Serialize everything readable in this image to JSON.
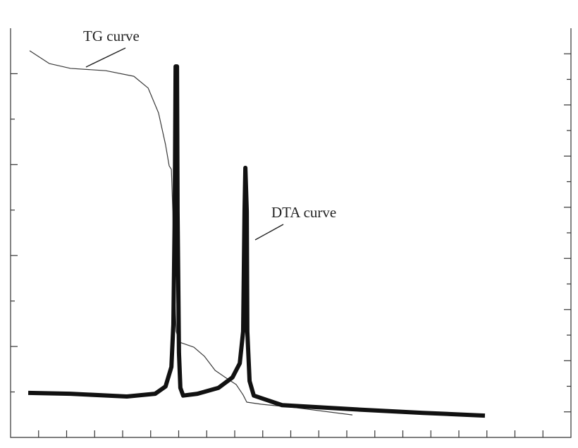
{
  "chart_data": {
    "type": "line",
    "xlim": [
      0,
      20
    ],
    "xticks": [
      1,
      2,
      3,
      4,
      5,
      6,
      7,
      8,
      9,
      10,
      11,
      12,
      13,
      14,
      15,
      16,
      17,
      18,
      19
    ],
    "ylim": [
      0,
      9
    ],
    "yticks": [
      1,
      2,
      3,
      4,
      5,
      6,
      7,
      8
    ],
    "y2lim": [
      0,
      16
    ],
    "y2ticks": [
      1,
      2,
      3,
      4,
      5,
      6,
      7,
      8,
      9,
      10,
      11,
      12,
      13,
      14,
      15
    ],
    "series": [
      {
        "name": "TG curve",
        "color": "#3a3a3a",
        "axis": "y2",
        "x": [
          0.68,
          1.38,
          2.14,
          3.4,
          4.4,
          4.91,
          5.28,
          5.53,
          5.66,
          5.74,
          5.79,
          5.84,
          5.91,
          6.04,
          6.54,
          6.92,
          7.3,
          7.67,
          8.05,
          8.3,
          8.43,
          8.93,
          10.19,
          12.2
        ],
        "values": [
          15.12,
          14.62,
          14.43,
          14.34,
          14.12,
          13.66,
          12.69,
          11.45,
          10.62,
          10.48,
          8.83,
          6.07,
          4.14,
          3.72,
          3.53,
          3.17,
          2.62,
          2.34,
          2.07,
          1.66,
          1.38,
          1.3,
          1.16,
          0.88
        ]
      },
      {
        "name": "DTA curve",
        "color": "#111111",
        "x": [
          0.63,
          2.14,
          4.15,
          5.16,
          5.53,
          5.74,
          5.81,
          5.86,
          5.89,
          5.94,
          5.96,
          6.01,
          6.06,
          6.16,
          6.67,
          7.42,
          7.92,
          8.18,
          8.3,
          8.35,
          8.38,
          8.43,
          8.45,
          8.53,
          8.68,
          9.69,
          12.2,
          14.72,
          16.93
        ],
        "values": [
          0.98,
          0.96,
          0.9,
          0.96,
          1.12,
          1.55,
          2.48,
          4.97,
          8.16,
          8.16,
          4.97,
          1.86,
          1.09,
          0.92,
          0.96,
          1.09,
          1.32,
          1.63,
          2.33,
          4.97,
          5.93,
          4.97,
          2.33,
          1.24,
          0.92,
          0.71,
          0.62,
          0.54,
          0.48
        ]
      }
    ]
  }
}
